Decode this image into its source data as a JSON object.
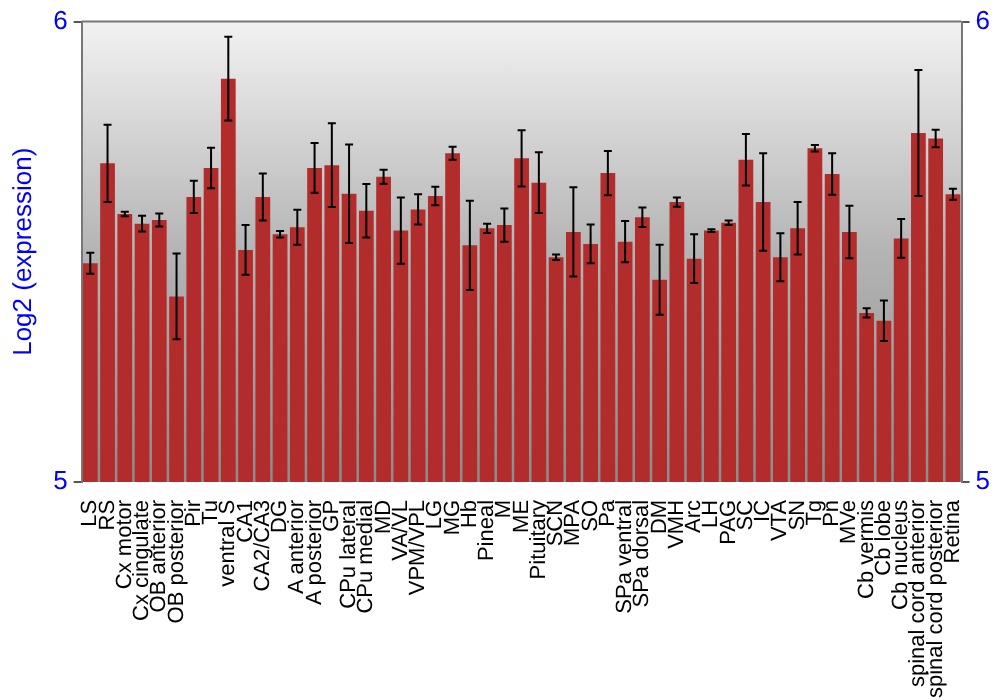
{
  "chart_data": {
    "type": "bar",
    "ylabel": "Log2 (expression)",
    "categories": [
      "LS",
      "RS",
      "Cx motor",
      "Cx cingulate",
      "OB anterior",
      "OB posterior",
      "Pir",
      "Tu",
      "ventral S",
      "CA1",
      "CA2/CA3",
      "DG",
      "A anterior",
      "A posterior",
      "GP",
      "CPu lateral",
      "CPu medial",
      "MD",
      "VA/VL",
      "VPM/VPL",
      "LG",
      "MG",
      "Hb",
      "Pineal",
      "M",
      "ME",
      "Pituitary",
      "SCN",
      "MPA",
      "SO",
      "Pa",
      "SPa ventral",
      "SPa dorsal",
      "DM",
      "VMH",
      "Arc",
      "LH",
      "PAG",
      "SC",
      "IC",
      "VTA",
      "SN",
      "Tg",
      "Pn",
      "MVe",
      "Cb vermis",
      "Cb lobe",
      "Cb nucleus",
      "spinal cord anterior",
      "spinal cord posterior",
      "Retina"
    ],
    "values": [
      5.475,
      5.692,
      5.582,
      5.561,
      5.569,
      5.403,
      5.619,
      5.682,
      5.876,
      5.504,
      5.619,
      5.538,
      5.553,
      5.682,
      5.688,
      5.626,
      5.589,
      5.663,
      5.546,
      5.592,
      5.621,
      5.714,
      5.514,
      5.551,
      5.558,
      5.703,
      5.65,
      5.488,
      5.543,
      5.517,
      5.671,
      5.522,
      5.575,
      5.439,
      5.608,
      5.485,
      5.546,
      5.563,
      5.7,
      5.608,
      5.488,
      5.551,
      5.725,
      5.669,
      5.543,
      5.367,
      5.35,
      5.529,
      5.758,
      5.746,
      5.625
    ],
    "errors": [
      0.023,
      0.084,
      0.005,
      0.017,
      0.014,
      0.093,
      0.035,
      0.044,
      0.091,
      0.054,
      0.051,
      0.007,
      0.038,
      0.054,
      0.091,
      0.107,
      0.058,
      0.015,
      0.072,
      0.033,
      0.02,
      0.014,
      0.097,
      0.01,
      0.036,
      0.061,
      0.066,
      0.006,
      0.097,
      0.042,
      0.048,
      0.045,
      0.021,
      0.076,
      0.01,
      0.053,
      0.003,
      0.005,
      0.056,
      0.106,
      0.052,
      0.057,
      0.007,
      0.045,
      0.057,
      0.01,
      0.044,
      0.042,
      0.137,
      0.019,
      0.012
    ],
    "color": "#b22c2c",
    "ylim": [
      5,
      6
    ],
    "yticks": [
      5,
      6
    ],
    "y2lim": [
      5,
      6
    ],
    "y2ticks": [
      5,
      6
    ],
    "grid": false,
    "legend": false
  }
}
